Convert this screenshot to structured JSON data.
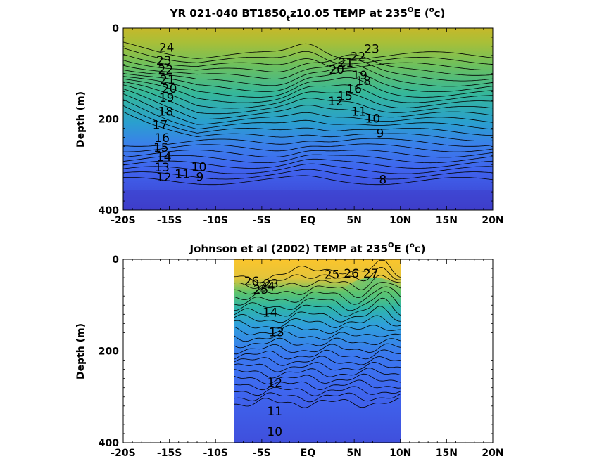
{
  "chart_data": [
    {
      "type": "heatmap",
      "title": "YR 021-040 BT1850",
      "title_sub": "t",
      "title_rest": "z10.05 TEMP at 235",
      "title_deg": "O",
      "title_e": "E (",
      "title_unit_sup": "o",
      "title_end": "c)",
      "ylabel": "Depth (m)",
      "x_ticks": [
        "-20S",
        "-15S",
        "-10S",
        "-5S",
        "EQ",
        "5N",
        "10N",
        "15N",
        "20N"
      ],
      "x_values": [
        -20,
        -15,
        -10,
        -5,
        0,
        5,
        10,
        15,
        20
      ],
      "y_ticks": [
        "0",
        "200",
        "400"
      ],
      "y_values": [
        0,
        200,
        400
      ],
      "xlim": [
        -20,
        20
      ],
      "ylim": [
        0,
        400
      ],
      "y_reversed": true,
      "data_extent": [
        -20,
        20
      ],
      "contour_labels": [
        {
          "text": "24",
          "x": -15.3,
          "y": 52
        },
        {
          "text": "23",
          "x": -15.6,
          "y": 80
        },
        {
          "text": "22",
          "x": -15.4,
          "y": 100
        },
        {
          "text": "21",
          "x": -15.2,
          "y": 122
        },
        {
          "text": "20",
          "x": -15.0,
          "y": 142
        },
        {
          "text": "19",
          "x": -15.3,
          "y": 162
        },
        {
          "text": "18",
          "x": -15.4,
          "y": 192
        },
        {
          "text": "17",
          "x": -16.0,
          "y": 222
        },
        {
          "text": "16",
          "x": -15.8,
          "y": 250
        },
        {
          "text": "15",
          "x": -15.9,
          "y": 272
        },
        {
          "text": "14",
          "x": -15.6,
          "y": 292
        },
        {
          "text": "13",
          "x": -15.8,
          "y": 315
        },
        {
          "text": "12",
          "x": -15.6,
          "y": 337
        },
        {
          "text": "11",
          "x": -13.6,
          "y": 330
        },
        {
          "text": "10",
          "x": -11.8,
          "y": 314
        },
        {
          "text": "9",
          "x": -11.7,
          "y": 336
        },
        {
          "text": "23",
          "x": 6.9,
          "y": 55
        },
        {
          "text": "22",
          "x": 5.4,
          "y": 72
        },
        {
          "text": "21",
          "x": 4.1,
          "y": 85
        },
        {
          "text": "20",
          "x": 3.1,
          "y": 100
        },
        {
          "text": "19",
          "x": 5.6,
          "y": 113
        },
        {
          "text": "18",
          "x": 6.0,
          "y": 125
        },
        {
          "text": "16",
          "x": 5.0,
          "y": 143
        },
        {
          "text": "15",
          "x": 4.0,
          "y": 158
        },
        {
          "text": "12",
          "x": 3.0,
          "y": 170
        },
        {
          "text": "11",
          "x": 5.5,
          "y": 192
        },
        {
          "text": "10",
          "x": 7.0,
          "y": 208
        },
        {
          "text": "9",
          "x": 7.8,
          "y": 240
        },
        {
          "text": "8",
          "x": 8.1,
          "y": 342
        }
      ],
      "colors": {
        "warm": "#c9b825",
        "mid": "#35b79a",
        "cool": "#3f6cf2",
        "cold": "#3e37c9"
      }
    },
    {
      "type": "heatmap",
      "title": "Johnson et al (2002) TEMP at 235",
      "title_deg": "O",
      "title_e": "E (",
      "title_unit_sup": "o",
      "title_end": "c)",
      "ylabel": "Depth (m)",
      "x_ticks": [
        "-20S",
        "-15S",
        "-10S",
        "-5S",
        "EQ",
        "5N",
        "10N",
        "15N",
        "20N"
      ],
      "x_values": [
        -20,
        -15,
        -10,
        -5,
        0,
        5,
        10,
        15,
        20
      ],
      "y_ticks": [
        "0",
        "200",
        "400"
      ],
      "y_values": [
        0,
        200,
        400
      ],
      "xlim": [
        -20,
        20
      ],
      "ylim": [
        0,
        400
      ],
      "y_reversed": true,
      "data_extent": [
        -8,
        10
      ],
      "contour_labels": [
        {
          "text": "26",
          "x": -6.1,
          "y": 57
        },
        {
          "text": "25",
          "x": -5.1,
          "y": 75
        },
        {
          "text": "24",
          "x": -4.4,
          "y": 68
        },
        {
          "text": "23",
          "x": -4.0,
          "y": 62
        },
        {
          "text": "14",
          "x": -4.1,
          "y": 125
        },
        {
          "text": "13",
          "x": -3.4,
          "y": 168
        },
        {
          "text": "25",
          "x": 2.6,
          "y": 42
        },
        {
          "text": "26",
          "x": 4.7,
          "y": 40
        },
        {
          "text": "27",
          "x": 6.8,
          "y": 40
        },
        {
          "text": "12",
          "x": -3.6,
          "y": 278
        },
        {
          "text": "11",
          "x": -3.6,
          "y": 340
        },
        {
          "text": "10",
          "x": -3.6,
          "y": 385
        }
      ],
      "colors": {
        "warm": "#f6c22e",
        "mid": "#34a9d6",
        "cool": "#3f6cf2",
        "cold": "#3f48d6"
      }
    }
  ]
}
